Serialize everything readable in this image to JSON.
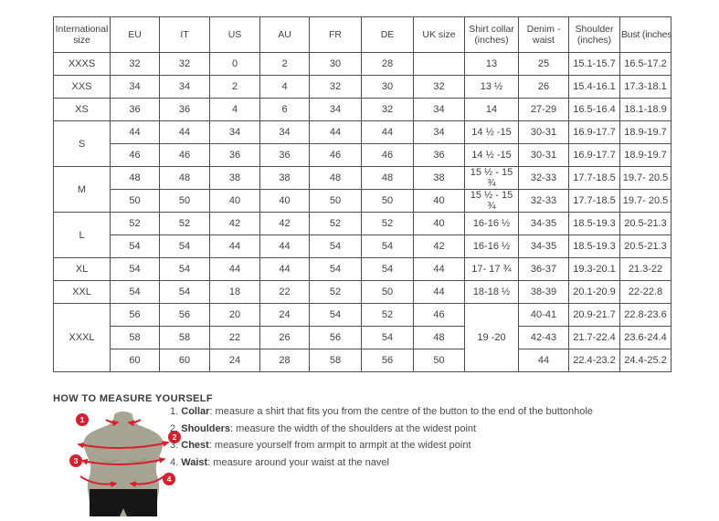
{
  "colors": {
    "border": "#4e4e4e",
    "text": "#3f3f3f",
    "accent_red": "#d6202f",
    "torso": "#a8a494",
    "shorts": "#161616"
  },
  "size_chart": {
    "headers": [
      "International size",
      "EU",
      "IT",
      "US",
      "AU",
      "FR",
      "DE",
      "UK size",
      "Shirt collar (inches)",
      "Denim - waist",
      "Shoulder (inches)",
      "Bust (inches)"
    ],
    "groups": [
      {
        "size": "XXXS",
        "rows": [
          [
            "32",
            "32",
            "0",
            "2",
            "30",
            "28",
            "",
            "13",
            "25",
            "15.1-15.7",
            "16.5-17.2"
          ]
        ]
      },
      {
        "size": "XXS",
        "rows": [
          [
            "34",
            "34",
            "2",
            "4",
            "32",
            "30",
            "32",
            "13 ½",
            "26",
            "15.4-16.1",
            "17.3-18.1"
          ]
        ]
      },
      {
        "size": "XS",
        "rows": [
          [
            "36",
            "36",
            "4",
            "6",
            "34",
            "32",
            "34",
            "14",
            "27-29",
            "16.5-16.4",
            "18.1-18.9"
          ]
        ]
      },
      {
        "size": "S",
        "rows": [
          [
            "44",
            "44",
            "34",
            "34",
            "44",
            "44",
            "34",
            "14 ½ -15",
            "30-31",
            "16.9-17.7",
            "18.9-19.7"
          ],
          [
            "46",
            "46",
            "36",
            "36",
            "46",
            "46",
            "36",
            "14 ½ -15",
            "30-31",
            "16.9-17.7",
            "18.9-19.7"
          ]
        ]
      },
      {
        "size": "M",
        "rows": [
          [
            "48",
            "48",
            "38",
            "38",
            "48",
            "48",
            "38",
            "15 ½ - 15 ¾",
            "32-33",
            "17.7-18.5",
            "19.7- 20.5"
          ],
          [
            "50",
            "50",
            "40",
            "40",
            "50",
            "50",
            "40",
            "15 ½ - 15 ¾",
            "32-33",
            "17.7-18.5",
            "19.7- 20.5"
          ]
        ]
      },
      {
        "size": "L",
        "rows": [
          [
            "52",
            "52",
            "42",
            "42",
            "52",
            "52",
            "40",
            "16-16 ½",
            "34-35",
            "18.5-19.3",
            "20.5-21.3"
          ],
          [
            "54",
            "54",
            "44",
            "44",
            "54",
            "54",
            "42",
            "16-16 ½",
            "34-35",
            "18.5-19.3",
            "20.5-21.3"
          ]
        ]
      },
      {
        "size": "XL",
        "rows": [
          [
            "54",
            "54",
            "44",
            "44",
            "54",
            "54",
            "44",
            "17- 17 ¾",
            "36-37",
            "19.3-20.1",
            "21.3-22"
          ]
        ]
      },
      {
        "size": "XXL",
        "rows": [
          [
            "54",
            "54",
            "18",
            "22",
            "52",
            "50",
            "44",
            "18-18 ½",
            "38-39",
            "20.1-20.9",
            "22-22.8"
          ]
        ]
      },
      {
        "size": "XXXL",
        "rowspans": {
          "7": 3
        },
        "rows": [
          [
            "56",
            "56",
            "20",
            "24",
            "54",
            "52",
            "46",
            "19 -20",
            "40-41",
            "20.9-21.7",
            "22.8-23.6"
          ],
          [
            "58",
            "58",
            "22",
            "26",
            "56",
            "54",
            "48",
            null,
            "42-43",
            "21.7-22.4",
            "23.6-24.4"
          ],
          [
            "60",
            "60",
            "24",
            "28",
            "58",
            "56",
            "50",
            null,
            "44",
            "22.4-23.2",
            "24.4-25.2"
          ]
        ]
      }
    ]
  },
  "measure_guide": {
    "heading": "HOW TO MEASURE YOURSELF",
    "items": [
      {
        "num": "1.",
        "label": "Collar",
        "text": ": measure a shirt that fits you from the centre of the button to the end of the buttonhole"
      },
      {
        "num": "2.",
        "label": "Shoulders",
        "text": ": measure the width of the shoulders at the widest point"
      },
      {
        "num": "3.",
        "label": "Chest",
        "text": ": measure yourself from armpit to armpit at the widest point"
      },
      {
        "num": "4.",
        "label": "Waist",
        "text": ": measure around your waist at the navel"
      }
    ],
    "markers": [
      "1",
      "2",
      "3",
      "4"
    ]
  }
}
